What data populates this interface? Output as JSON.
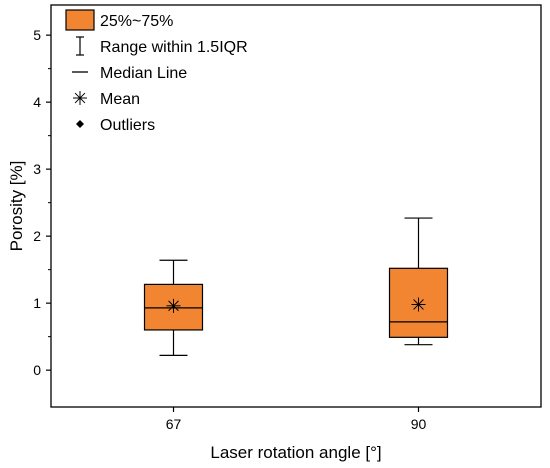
{
  "chart_data": {
    "type": "box",
    "xlabel": "Laser rotation angle [°]",
    "ylabel": "Porosity [%]",
    "ylim": [
      -0.55,
      5.45
    ],
    "yticks": [
      0,
      1,
      2,
      3,
      4,
      5
    ],
    "categories": [
      "67",
      "90"
    ],
    "boxes": [
      {
        "category": "67",
        "min": 0.22,
        "q1": 0.6,
        "median": 0.93,
        "q3": 1.28,
        "max": 1.64,
        "mean": 0.96
      },
      {
        "category": "90",
        "min": 0.38,
        "q1": 0.49,
        "median": 0.72,
        "q3": 1.52,
        "max": 2.27,
        "mean": 0.98
      }
    ],
    "box_color": "#f28532",
    "legend": {
      "position": "top-left",
      "items": [
        {
          "label": "25%~75%",
          "symbol": "box"
        },
        {
          "label": "Range within 1.5IQR",
          "symbol": "whisker"
        },
        {
          "label": "Median Line",
          "symbol": "line"
        },
        {
          "label": "Mean",
          "symbol": "asterisk"
        },
        {
          "label": "Outliers",
          "symbol": "diamond"
        }
      ]
    },
    "grid": false
  }
}
